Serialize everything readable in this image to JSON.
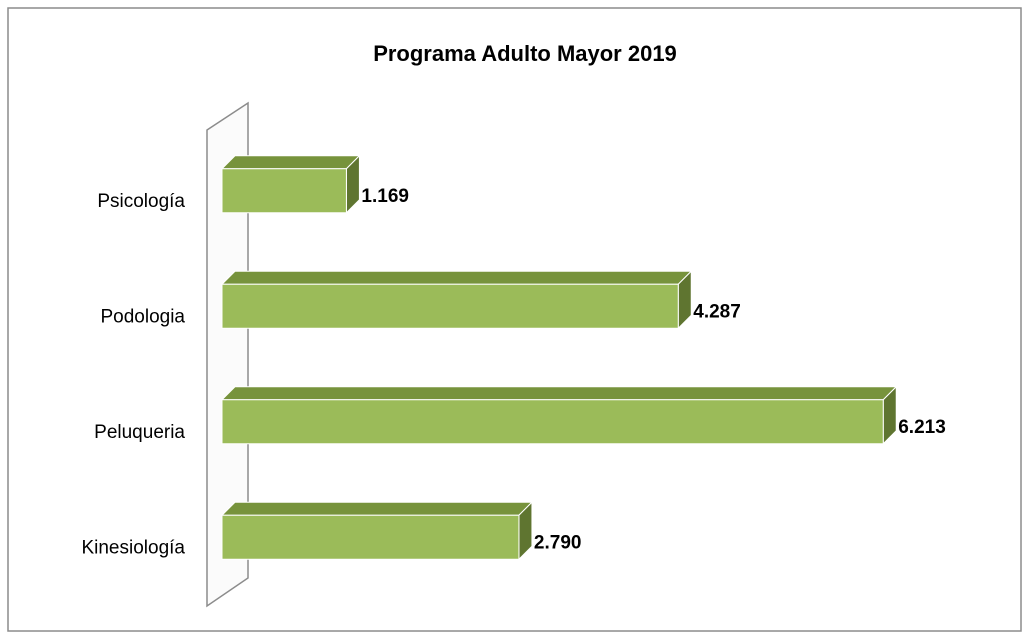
{
  "chart_data": {
    "type": "bar",
    "orientation": "horizontal",
    "title": "Programa Adulto Mayor 2019",
    "categories": [
      "Psicología",
      "Podologia",
      "Peluqueria",
      "Kinesiología"
    ],
    "values": [
      1169,
      4287,
      6213,
      2790
    ],
    "value_labels": [
      "1.169",
      "4.287",
      "6.213",
      "2.790"
    ],
    "color": "#9bbb59",
    "xlim": [
      0,
      7000
    ]
  }
}
